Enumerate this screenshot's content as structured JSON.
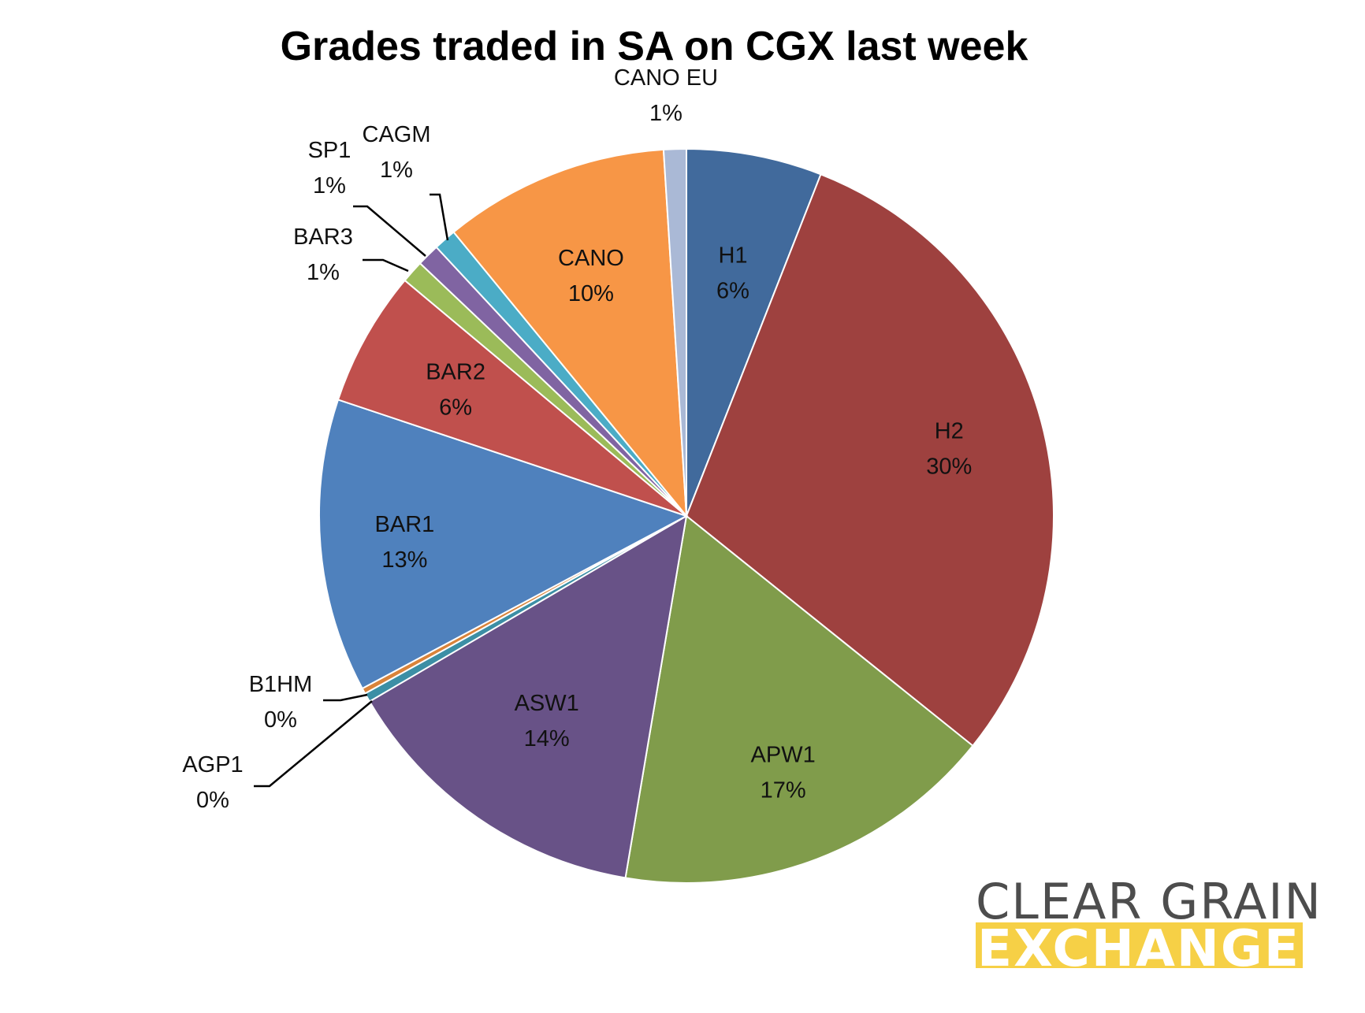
{
  "chart_data": {
    "type": "pie",
    "title": "Grades traded in SA on CGX last week",
    "start": "12 o'clock",
    "direction": "clockwise",
    "slices": [
      {
        "name": "H1",
        "value": 6,
        "label": "6%",
        "color": "#416a9c"
      },
      {
        "name": "H2",
        "value": 30,
        "label": "30%",
        "color": "#9e413f"
      },
      {
        "name": "APW1",
        "value": 17,
        "label": "17%",
        "color": "#809c4b"
      },
      {
        "name": "ASW1",
        "value": 14,
        "label": "14%",
        "color": "#685287"
      },
      {
        "name": "AGP1",
        "value": 0.4,
        "label": "0%",
        "color": "#3c8fa5"
      },
      {
        "name": "B1HM",
        "value": 0.25,
        "label": "0%",
        "color": "#d9833a"
      },
      {
        "name": "BAR1",
        "value": 13,
        "label": "13%",
        "color": "#4f81bd"
      },
      {
        "name": "BAR2",
        "value": 6,
        "label": "6%",
        "color": "#c0504d"
      },
      {
        "name": "BAR3",
        "value": 1,
        "label": "1%",
        "color": "#9bbb59"
      },
      {
        "name": "SP1",
        "value": 1,
        "label": "1%",
        "color": "#8064a2"
      },
      {
        "name": "CAGM",
        "value": 1,
        "label": "1%",
        "color": "#4bacc6"
      },
      {
        "name": "CANO",
        "value": 10,
        "label": "10%",
        "color": "#f79646"
      },
      {
        "name": "CANO EU",
        "value": 1,
        "label": "1%",
        "color": "#aab9d6"
      }
    ]
  },
  "logo": {
    "line1": "CLEAR GRAIN",
    "line2": "EXCHANGE",
    "accent_color": "#f6d046",
    "text_color": "#4d4d4d"
  }
}
